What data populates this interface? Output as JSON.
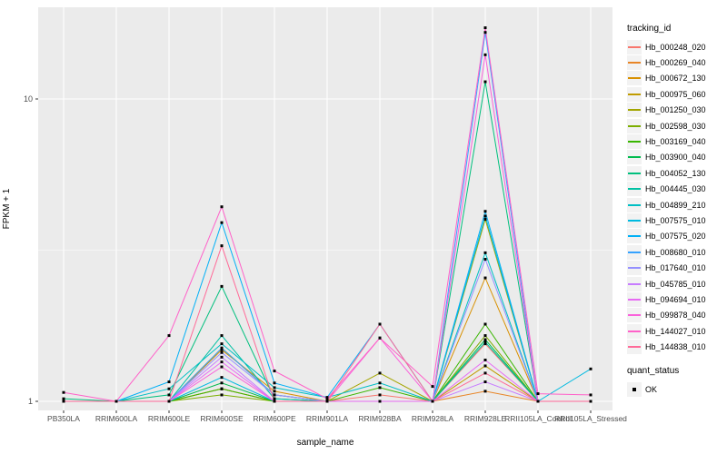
{
  "chart_data": {
    "type": "line",
    "title": "",
    "xlabel": "sample_name",
    "ylabel": "FPKM + 1",
    "yscale": "log10",
    "yticks": [
      1,
      10
    ],
    "y_minor": [
      3.1623
    ],
    "grid": "white major and minor on gray panel",
    "legend_position": "right",
    "legend_title": "tracking_id",
    "quant_legend": {
      "title": "quant_status",
      "items": [
        "OK"
      ]
    },
    "panel_bg": "#EBEBEB",
    "gridline_color": "#FFFFFF",
    "tick_label_color": "#4D4D4D",
    "point_color": "#000000",
    "categories": [
      "PB350LA",
      "RRIM600LA",
      "RRIM600LE",
      "RRIM600SE",
      "RRIM600PE",
      "RRIM901LA",
      "RRIM928BA",
      "RRIM928LA",
      "RRIM928LE",
      "RRII105LA_Control",
      "RRII105LA_Stressed"
    ],
    "series": [
      {
        "name": "Hb_000248_020",
        "color": "#F8766D",
        "values": [
          1.0,
          1.0,
          1.0,
          1.5,
          1.05,
          1.0,
          1.05,
          1.0,
          1.55,
          1.0,
          1.0
        ]
      },
      {
        "name": "Hb_000269_040",
        "color": "#E88526",
        "values": [
          1.0,
          1.0,
          1.0,
          1.1,
          1.0,
          1.0,
          1.0,
          1.0,
          1.08,
          1.0,
          1.0
        ]
      },
      {
        "name": "Hb_000672_130",
        "color": "#D89000",
        "values": [
          1.0,
          1.0,
          1.0,
          1.48,
          1.08,
          1.0,
          1.0,
          1.0,
          2.56,
          1.0,
          1.0
        ]
      },
      {
        "name": "Hb_000975_060",
        "color": "#C09B00",
        "values": [
          1.0,
          1.0,
          1.0,
          1.1,
          1.0,
          1.0,
          1.0,
          1.0,
          1.31,
          1.0,
          1.0
        ]
      },
      {
        "name": "Hb_001250_030",
        "color": "#A3A500",
        "values": [
          1.0,
          1.0,
          1.0,
          1.5,
          1.05,
          1.0,
          1.24,
          1.0,
          4.0,
          1.0,
          1.0
        ]
      },
      {
        "name": "Hb_002598_030",
        "color": "#7CAE00",
        "values": [
          1.0,
          1.0,
          1.0,
          1.05,
          1.0,
          1.0,
          1.0,
          1.0,
          1.65,
          1.0,
          1.0
        ]
      },
      {
        "name": "Hb_003169_040",
        "color": "#39B600",
        "values": [
          1.0,
          1.0,
          1.0,
          1.1,
          1.0,
          1.0,
          1.11,
          1.0,
          1.8,
          1.0,
          1.0
        ]
      },
      {
        "name": "Hb_003900_040",
        "color": "#00BB4E",
        "values": [
          1.0,
          1.0,
          1.0,
          1.15,
          1.0,
          1.0,
          1.0,
          1.0,
          1.6,
          1.0,
          1.0
        ]
      },
      {
        "name": "Hb_004052_130",
        "color": "#00BF7D",
        "values": [
          1.02,
          1.0,
          1.05,
          2.4,
          1.02,
          1.0,
          1.0,
          1.0,
          11.4,
          1.0,
          1.0
        ]
      },
      {
        "name": "Hb_004445_030",
        "color": "#00C1A3",
        "values": [
          1.0,
          1.0,
          1.0,
          1.65,
          1.02,
          1.0,
          1.0,
          1.0,
          1.57,
          1.0,
          1.0
        ]
      },
      {
        "name": "Hb_004899_210",
        "color": "#00BFC4",
        "values": [
          1.0,
          1.0,
          1.1,
          1.55,
          1.11,
          1.03,
          1.15,
          1.0,
          3.1,
          1.0,
          1.0
        ]
      },
      {
        "name": "Hb_007575_010",
        "color": "#00BAE0",
        "values": [
          1.0,
          1.0,
          1.0,
          1.2,
          1.0,
          1.0,
          1.0,
          1.0,
          4.1,
          1.0,
          1.28
        ]
      },
      {
        "name": "Hb_007575_020",
        "color": "#00B0F6",
        "values": [
          1.0,
          1.0,
          1.16,
          3.9,
          1.15,
          1.03,
          1.8,
          1.0,
          4.25,
          1.0,
          1.0
        ]
      },
      {
        "name": "Hb_008680_010",
        "color": "#35A2FF",
        "values": [
          1.0,
          1.0,
          1.0,
          1.5,
          1.05,
          1.0,
          1.0,
          1.0,
          16.6,
          1.0,
          1.0
        ]
      },
      {
        "name": "Hb_017640_010",
        "color": "#9590FF",
        "values": [
          1.0,
          1.0,
          1.0,
          1.45,
          1.05,
          1.0,
          1.0,
          1.0,
          2.95,
          1.0,
          1.0
        ]
      },
      {
        "name": "Hb_045785_010",
        "color": "#C77CFF",
        "values": [
          1.0,
          1.0,
          1.0,
          1.4,
          1.0,
          1.0,
          1.0,
          1.0,
          1.16,
          1.0,
          1.0
        ]
      },
      {
        "name": "Hb_094694_010",
        "color": "#E76BF3",
        "values": [
          1.0,
          1.0,
          1.0,
          1.35,
          1.0,
          1.0,
          1.0,
          1.0,
          1.37,
          1.0,
          1.0
        ]
      },
      {
        "name": "Hb_099878_040",
        "color": "#FA62DB",
        "values": [
          1.0,
          1.0,
          1.0,
          1.3,
          1.0,
          1.0,
          1.62,
          1.0,
          14.0,
          1.0,
          1.0
        ]
      },
      {
        "name": "Hb_144027_010",
        "color": "#FF61C9",
        "values": [
          1.07,
          1.0,
          1.65,
          4.4,
          1.26,
          1.02,
          1.62,
          1.12,
          17.2,
          1.06,
          1.05
        ]
      },
      {
        "name": "Hb_144838_010",
        "color": "#FF6A98",
        "values": [
          1.0,
          1.0,
          1.0,
          3.27,
          1.0,
          1.0,
          1.8,
          1.0,
          1.24,
          1.0,
          1.0
        ]
      }
    ]
  }
}
